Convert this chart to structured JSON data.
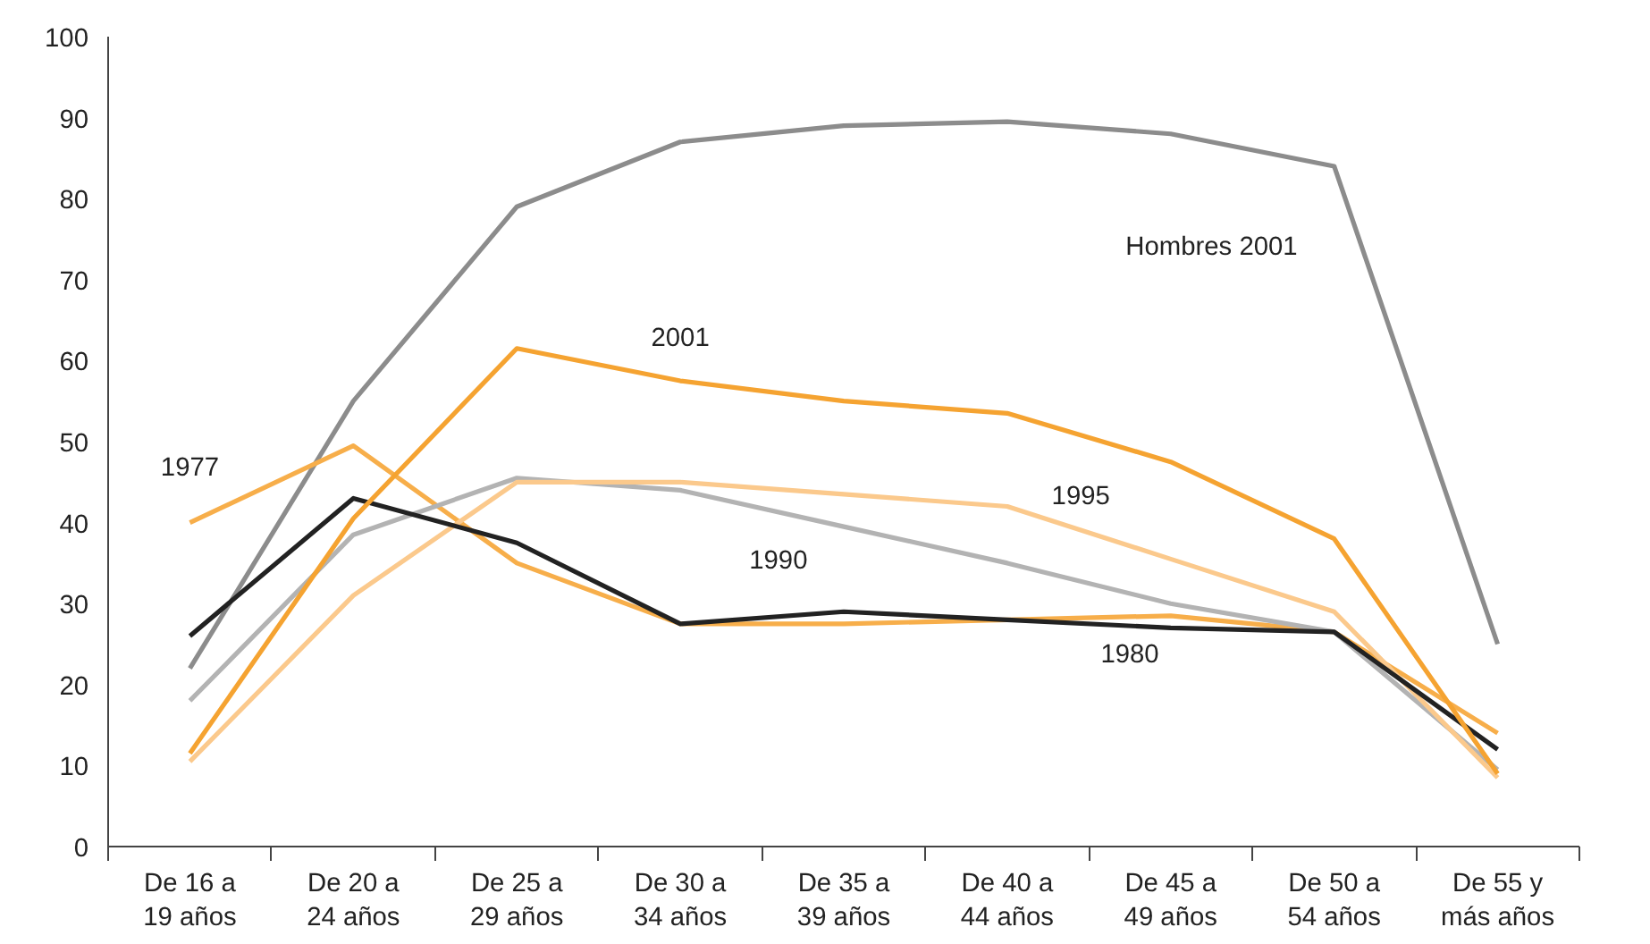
{
  "chart_data": {
    "type": "line",
    "categories": [
      "De 16 a\n19 años",
      "De 20 a\n24 años",
      "De 25 a\n29 años",
      "De 30 a\n34 años",
      "De 35 a\n39 años",
      "De 40 a\n44 años",
      "De 45 a\n49 años",
      "De 50 a\n54 años",
      "De 55 y\nmás años"
    ],
    "series": [
      {
        "name": "Hombres 2001",
        "color": "#8c8c8c",
        "values": [
          22,
          55,
          79,
          87,
          89,
          89.5,
          88,
          84,
          25
        ]
      },
      {
        "name": "1977",
        "color": "#f7ae4a",
        "values": [
          40,
          49.5,
          35,
          27.5,
          27.5,
          28,
          28.5,
          26.5,
          14
        ]
      },
      {
        "name": "1990",
        "color": "#b3b3b3",
        "values": [
          18,
          38.5,
          45.5,
          44,
          39.5,
          35,
          30,
          26.5,
          9.5
        ]
      },
      {
        "name": "1995",
        "color": "#fbc98c",
        "values": [
          10.5,
          31,
          45,
          45,
          43.5,
          42,
          35.5,
          29,
          8.5
        ]
      },
      {
        "name": "1980",
        "color": "#222222",
        "values": [
          26,
          43,
          37.5,
          27.5,
          29,
          28,
          27,
          26.5,
          12
        ]
      },
      {
        "name": "2001",
        "color": "#f5a331",
        "values": [
          11.5,
          40.5,
          61.5,
          57.5,
          55,
          53.5,
          47.5,
          38,
          9
        ]
      }
    ],
    "ylim": [
      0,
      100
    ],
    "yticks": [
      0,
      10,
      20,
      30,
      40,
      50,
      60,
      70,
      80,
      90,
      100
    ],
    "grid": false,
    "legend": false,
    "marker": "none",
    "line_style": "solid"
  }
}
